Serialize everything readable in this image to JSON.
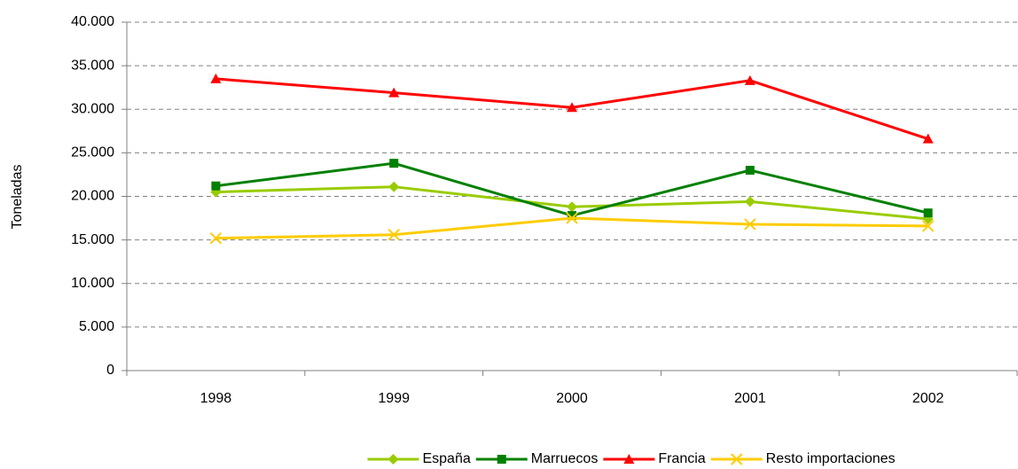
{
  "chart_data": {
    "type": "line",
    "y_label": "Toneladas",
    "categories": [
      "1998",
      "1999",
      "2000",
      "2001",
      "2002"
    ],
    "series": [
      {
        "name": "España",
        "color": "#99cc00",
        "marker": "diamond",
        "values": [
          20500,
          21100,
          18800,
          19400,
          17400
        ]
      },
      {
        "name": "Marruecos",
        "color": "#008000",
        "marker": "square",
        "values": [
          21200,
          23800,
          17800,
          23000,
          18100
        ]
      },
      {
        "name": "Francia",
        "color": "#ff0000",
        "marker": "triangle",
        "values": [
          33500,
          31900,
          30200,
          33300,
          26600
        ]
      },
      {
        "name": "Resto importaciones",
        "color": "#ffcc00",
        "marker": "x",
        "values": [
          15200,
          15600,
          17500,
          16800,
          16600
        ]
      }
    ],
    "ylim": [
      0,
      40000
    ],
    "yticks": [
      0,
      {
        "value": 5000,
        "label": "5.000"
      },
      {
        "value": 10000,
        "label": "10.000"
      },
      {
        "value": 15000,
        "label": "15.000"
      },
      {
        "value": 20000,
        "label": "20.000"
      },
      {
        "value": 25000,
        "label": "25.000"
      },
      {
        "value": 30000,
        "label": "30.000"
      },
      {
        "value": 35000,
        "label": "35.000"
      },
      {
        "value": 40000,
        "label": "40.000"
      }
    ],
    "grid": true,
    "legend": "bottom"
  }
}
